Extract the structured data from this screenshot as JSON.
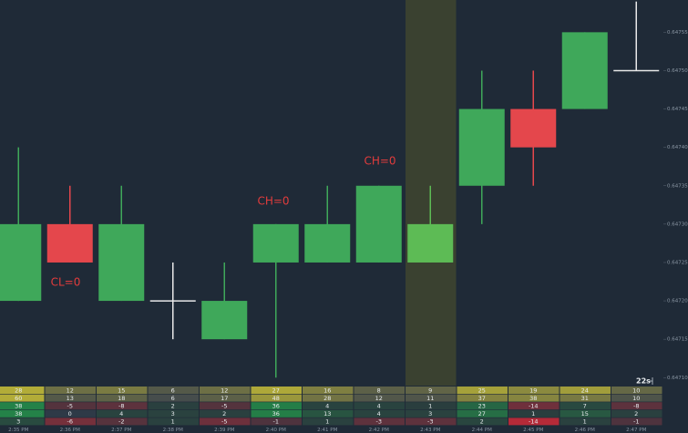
{
  "chart_data": {
    "type": "candlestick",
    "x": [
      "2:35 PM",
      "2:36 PM",
      "2:37 PM",
      "2:38 PM",
      "2:39 PM",
      "2:40 PM",
      "2:41 PM",
      "2:42 PM",
      "2:43 PM",
      "2:44 PM",
      "2:45 PM",
      "2:46 PM",
      "2:47 PM"
    ],
    "series": [
      {
        "open": [
          0.6472,
          0.6473,
          0.6472,
          0.6472,
          0.64715,
          0.64725,
          0.64725,
          0.64725,
          0.64725,
          0.64735,
          0.64745,
          0.64745,
          0.6475
        ],
        "high": [
          0.6474,
          0.64735,
          0.64735,
          0.64725,
          0.64725,
          0.6473,
          0.64735,
          0.64735,
          0.64735,
          0.6475,
          0.6475,
          0.64755,
          0.64759
        ],
        "low": [
          0.6472,
          0.64725,
          0.6472,
          0.64715,
          0.64715,
          0.6471,
          0.64725,
          0.64725,
          0.64725,
          0.6473,
          0.64735,
          0.64745,
          0.6475
        ],
        "close": [
          0.6473,
          0.64725,
          0.6473,
          0.6472,
          0.6472,
          0.6473,
          0.6473,
          0.64735,
          0.6473,
          0.64745,
          0.6474,
          0.64755,
          0.6475
        ]
      }
    ],
    "up_color": "#3fa85a",
    "down_color": "#e4474c",
    "doji_color": "#e8e8e8",
    "highlight_index": 8,
    "highlight_color": "#3a4130",
    "highlight_candle_color": "#5dbb55",
    "ylim": [
      0.647092,
      0.647592
    ],
    "yticks": [
      0.64755,
      {
        "value": 0.6475,
        "label": "0.64750"
      },
      0.64745,
      {
        "value": 0.6474,
        "label": "0.64740"
      },
      0.64735,
      {
        "value": 0.6473,
        "label": "0.64730"
      },
      0.64725,
      {
        "value": 0.6472,
        "label": "0.64720"
      },
      0.64715,
      {
        "value": 0.6471,
        "label": "0.64710"
      }
    ],
    "annotations": [
      "CL=0",
      "CH=0",
      "CH=0"
    ],
    "timer": "22s",
    "table_rows": [
      [
        28,
        12,
        15,
        6,
        12,
        27,
        16,
        8,
        9,
        25,
        19,
        24,
        10
      ],
      [
        60,
        13,
        18,
        6,
        17,
        48,
        28,
        12,
        11,
        37,
        38,
        31,
        10
      ],
      [
        38,
        -5,
        -8,
        2,
        -5,
        36,
        4,
        4,
        1,
        23,
        -14,
        7,
        -8
      ],
      [
        38,
        0,
        4,
        3,
        2,
        36,
        13,
        4,
        3,
        27,
        1,
        15,
        2
      ],
      [
        3,
        -6,
        -2,
        1,
        -5,
        -1,
        1,
        -3,
        -3,
        2,
        -14,
        1,
        -1
      ]
    ]
  }
}
